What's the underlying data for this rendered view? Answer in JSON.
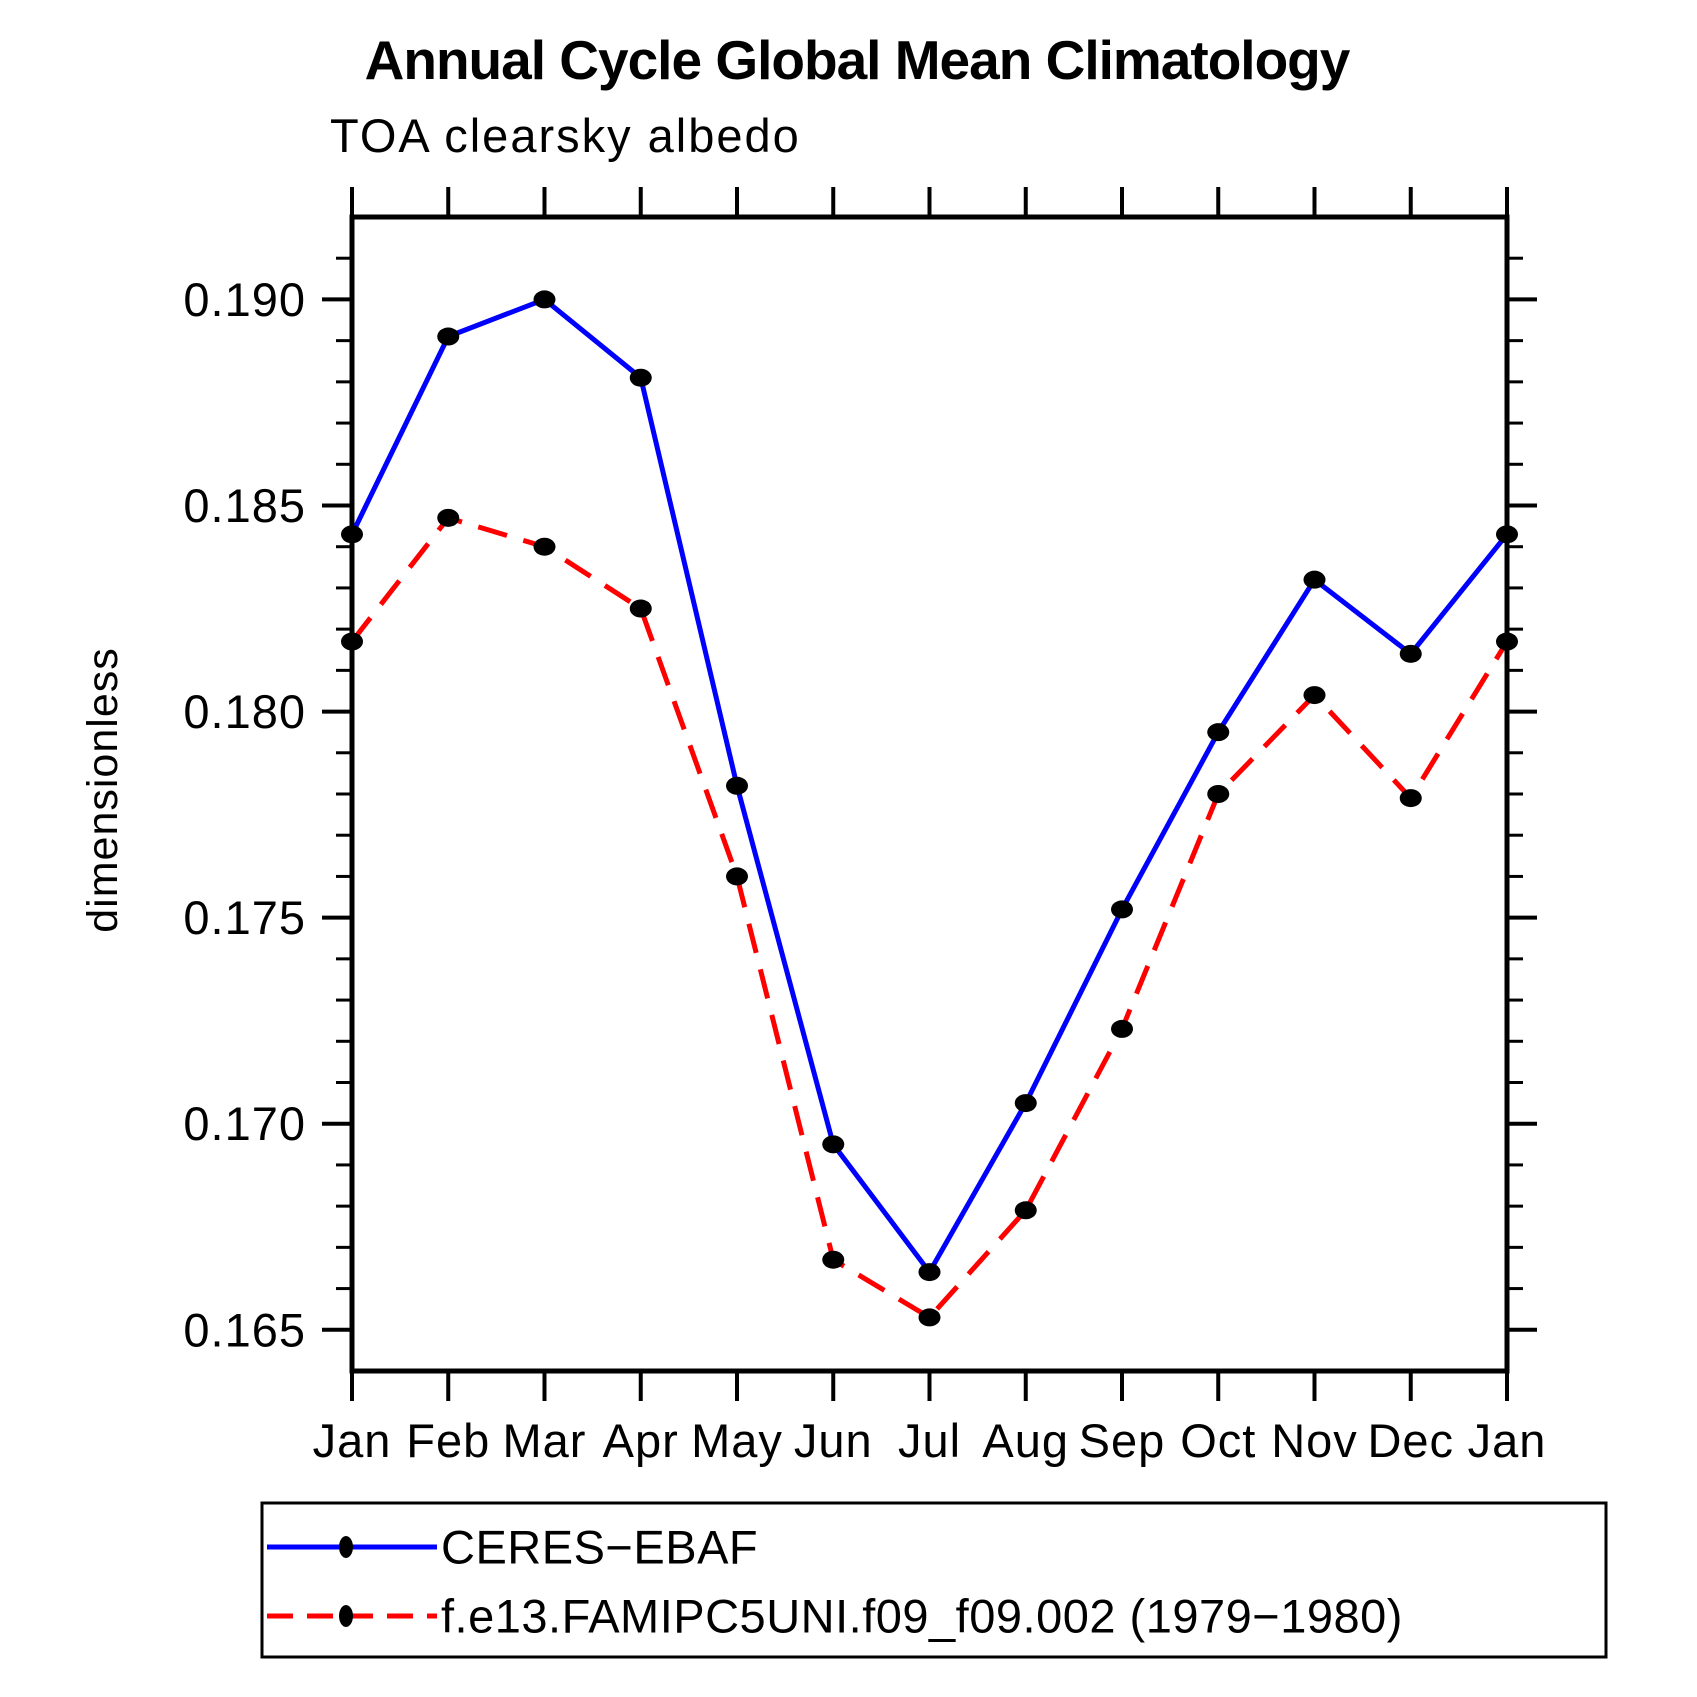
{
  "chart_data": {
    "type": "line",
    "title": "Annual Cycle Global Mean Climatology",
    "subtitle": "TOA clearsky albedo",
    "ylabel": "dimensionless",
    "xlabel": "",
    "categories": [
      "Jan",
      "Feb",
      "Mar",
      "Apr",
      "May",
      "Jun",
      "Jul",
      "Aug",
      "Sep",
      "Oct",
      "Nov",
      "Dec",
      "Jan"
    ],
    "series": [
      {
        "name": "CERES−EBAF",
        "color": "#0000ff",
        "line_style": "solid",
        "marker": "filled-circle",
        "values": [
          0.1843,
          0.1891,
          0.19,
          0.1881,
          0.1782,
          0.1695,
          0.1664,
          0.1705,
          0.1752,
          0.1795,
          0.1832,
          0.1814,
          0.1843
        ]
      },
      {
        "name": "f.e13.FAMIPC5UNI.f09_f09.002 (1979−1980)",
        "color": "#ff0000",
        "line_style": "dashed",
        "marker": "filled-circle",
        "values": [
          0.1817,
          0.1847,
          0.184,
          0.1825,
          0.176,
          0.1667,
          0.1653,
          0.1679,
          0.1723,
          0.178,
          0.1804,
          0.1779,
          0.1817
        ]
      }
    ],
    "ylim": [
      0.164,
      0.192
    ],
    "y_ticks": [
      0.165,
      0.17,
      0.175,
      0.18,
      0.185,
      0.19
    ],
    "y_tick_labels": [
      "0.165",
      "0.170",
      "0.175",
      "0.180",
      "0.185",
      "0.190"
    ],
    "y_minor_step": 0.001,
    "marker_color": "#000000",
    "grid": "off",
    "legend_position": "bottom-left",
    "axis_color": "#000000",
    "background_color": "#ffffff"
  }
}
